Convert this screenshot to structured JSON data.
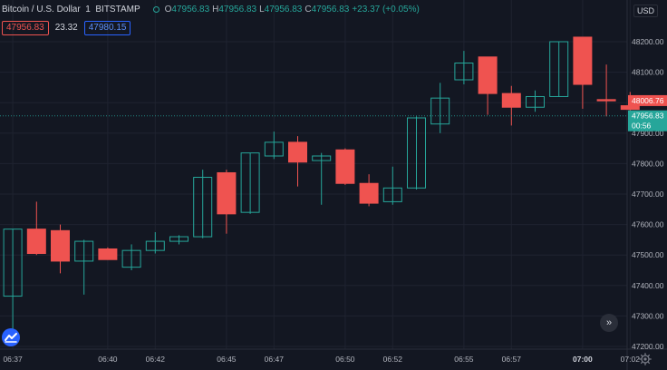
{
  "header": {
    "symbol_title": "Bitcoin / U.S. Dollar  1  BITSTAMP",
    "ohlc": {
      "open_label": "O",
      "open": "47956.83",
      "high_label": "H",
      "high": "47956.83",
      "low_label": "L",
      "low": "47956.83",
      "close_label": "C",
      "close": "47956.83"
    },
    "change": "+23.37 (+0.05%)",
    "indicator": {
      "bid": "47956.83",
      "spread": "23.32",
      "ask": "47980.15"
    },
    "currency": "USD"
  },
  "price_labels": {
    "red_level": "48006.76",
    "last_price": "47956.83",
    "countdown": "00:56"
  },
  "colors": {
    "background": "#131722",
    "up": "#26a69a",
    "down": "#ef5350",
    "grid": "#1f2330",
    "axis_text": "#b2b5be"
  },
  "icons": {
    "scroll": "double-chevron-right-icon",
    "logo": "tradingview-logo-icon",
    "settings": "gear-icon"
  },
  "chart_data": {
    "type": "candlestick",
    "title": "Bitcoin / U.S. Dollar  1  BITSTAMP",
    "xlabel": "",
    "ylabel": "",
    "ylim": [
      47200,
      48300
    ],
    "y_ticks": [
      48200,
      48100,
      48000,
      47900,
      47800,
      47700,
      47600,
      47500,
      47400,
      47300,
      47200
    ],
    "x_ticks": [
      "06:37",
      "06:40",
      "06:42",
      "06:45",
      "06:47",
      "06:50",
      "06:52",
      "06:55",
      "06:57",
      "07:00",
      "07:02"
    ],
    "x_tick_bars": [
      0.5,
      4.5,
      6.5,
      9.5,
      11.5,
      14.5,
      16.5,
      19.5,
      21.5,
      24.5,
      26.5
    ],
    "x_tick_bold": [
      false,
      false,
      false,
      false,
      false,
      false,
      false,
      false,
      false,
      true,
      false
    ],
    "grid": true,
    "candles": [
      {
        "time": "06:36",
        "open": 47365,
        "high": 47585,
        "low": 47250,
        "close": 47585
      },
      {
        "time": "06:37",
        "open": 47585,
        "high": 47675,
        "low": 47500,
        "close": 47505
      },
      {
        "time": "06:38",
        "open": 47580,
        "high": 47600,
        "low": 47440,
        "close": 47480
      },
      {
        "time": "06:39",
        "open": 47480,
        "high": 47550,
        "low": 47370,
        "close": 47545
      },
      {
        "time": "06:40",
        "open": 47520,
        "high": 47525,
        "low": 47485,
        "close": 47485
      },
      {
        "time": "06:41",
        "open": 47460,
        "high": 47535,
        "low": 47450,
        "close": 47515
      },
      {
        "time": "06:42",
        "open": 47515,
        "high": 47575,
        "low": 47505,
        "close": 47545
      },
      {
        "time": "06:43",
        "open": 47545,
        "high": 47565,
        "low": 47535,
        "close": 47560
      },
      {
        "time": "06:44",
        "open": 47560,
        "high": 47780,
        "low": 47555,
        "close": 47755
      },
      {
        "time": "06:45",
        "open": 47770,
        "high": 47780,
        "low": 47570,
        "close": 47635
      },
      {
        "time": "06:46",
        "open": 47640,
        "high": 47835,
        "low": 47635,
        "close": 47835
      },
      {
        "time": "06:47",
        "open": 47825,
        "high": 47905,
        "low": 47815,
        "close": 47870
      },
      {
        "time": "06:48",
        "open": 47870,
        "high": 47890,
        "low": 47725,
        "close": 47805
      },
      {
        "time": "06:49",
        "open": 47810,
        "high": 47835,
        "low": 47665,
        "close": 47825
      },
      {
        "time": "06:50",
        "open": 47845,
        "high": 47850,
        "low": 47730,
        "close": 47735
      },
      {
        "time": "06:51",
        "open": 47735,
        "high": 47765,
        "low": 47660,
        "close": 47670
      },
      {
        "time": "06:52",
        "open": 47675,
        "high": 47790,
        "low": 47665,
        "close": 47720
      },
      {
        "time": "06:53",
        "open": 47720,
        "high": 47955,
        "low": 47715,
        "close": 47950
      },
      {
        "time": "06:54",
        "open": 47930,
        "high": 48065,
        "low": 47900,
        "close": 48015
      },
      {
        "time": "06:55",
        "open": 48075,
        "high": 48170,
        "low": 48060,
        "close": 48130
      },
      {
        "time": "06:56",
        "open": 48150,
        "high": 48150,
        "low": 47960,
        "close": 48030
      },
      {
        "time": "06:57",
        "open": 48030,
        "high": 48055,
        "low": 47925,
        "close": 47985
      },
      {
        "time": "06:58",
        "open": 47985,
        "high": 48040,
        "low": 47970,
        "close": 48020
      },
      {
        "time": "06:59",
        "open": 48020,
        "high": 48200,
        "low": 48020,
        "close": 48200
      },
      {
        "time": "07:00",
        "open": 48215,
        "high": 48215,
        "low": 47980,
        "close": 48060
      },
      {
        "time": "07:01",
        "open": 48010,
        "high": 48125,
        "low": 47955,
        "close": 48006
      },
      {
        "time": "07:02",
        "open": 47990,
        "high": 48035,
        "low": 47960,
        "close": 47978
      }
    ]
  }
}
